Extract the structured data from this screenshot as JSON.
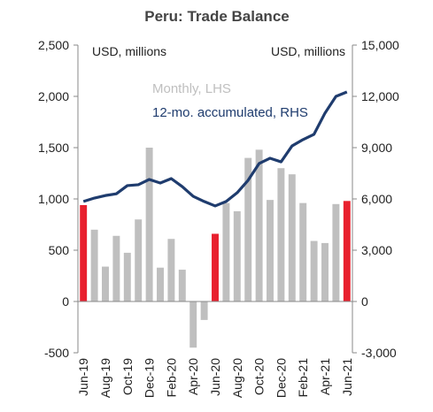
{
  "chart_data": {
    "type": "bar_line",
    "title": "Peru: Trade Balance",
    "y_unit_label": "USD, millions",
    "y2_unit_label": "USD, millions",
    "categories": [
      "Jun-19",
      null,
      "Aug-19",
      null,
      "Oct-19",
      null,
      "Dec-19",
      null,
      "Feb-20",
      null,
      "Apr-20",
      null,
      "Jun-20",
      null,
      "Aug-20",
      null,
      "Oct-20",
      null,
      "Dec-20",
      null,
      "Feb-21",
      null,
      "Apr-21",
      null,
      "Jun-21"
    ],
    "series": [
      {
        "name": "Monthly, LHS",
        "type": "bar",
        "color": "#bfbfbf",
        "colors": [
          "#e8202e",
          "#bfbfbf",
          "#bfbfbf",
          "#bfbfbf",
          "#bfbfbf",
          "#bfbfbf",
          "#bfbfbf",
          "#bfbfbf",
          "#bfbfbf",
          "#bfbfbf",
          "#bfbfbf",
          "#bfbfbf",
          "#e8202e",
          "#bfbfbf",
          "#bfbfbf",
          "#bfbfbf",
          "#bfbfbf",
          "#bfbfbf",
          "#bfbfbf",
          "#bfbfbf",
          "#bfbfbf",
          "#bfbfbf",
          "#bfbfbf",
          "#bfbfbf",
          "#e8202e"
        ],
        "values": [
          940,
          700,
          340,
          640,
          475,
          800,
          1500,
          330,
          610,
          310,
          -450,
          -180,
          660,
          960,
          880,
          1400,
          1480,
          990,
          1300,
          1240,
          960,
          590,
          570,
          950,
          980
        ]
      },
      {
        "name": "12-mo. accumulated, RHS",
        "type": "line",
        "axis": "y2",
        "color": "#1f3c6e",
        "values": [
          5850,
          6050,
          6200,
          6300,
          6780,
          6830,
          7140,
          6930,
          7190,
          6720,
          6150,
          5850,
          5590,
          5850,
          6360,
          7090,
          8070,
          8380,
          8170,
          9100,
          9470,
          9780,
          11020,
          12000,
          12260
        ]
      }
    ],
    "ylim": [
      -500,
      2500
    ],
    "yticks": [
      -500,
      0,
      500,
      {
        "value": 1000,
        "label": "1,000"
      },
      {
        "value": 1500,
        "label": "1,500"
      },
      {
        "value": 2000,
        "label": "2,000"
      },
      {
        "value": 2500,
        "label": "2,500"
      }
    ],
    "y2lim": [
      -3000,
      15000
    ],
    "y2ticks": [
      {
        "value": -3000,
        "label": "-3,000"
      },
      0,
      {
        "value": 3000,
        "label": "3,000"
      },
      {
        "value": 6000,
        "label": "6,000"
      },
      {
        "value": 9000,
        "label": "9,000"
      },
      {
        "value": 12000,
        "label": "12,000"
      },
      {
        "value": 15000,
        "label": "15,000"
      }
    ],
    "grid": false
  }
}
